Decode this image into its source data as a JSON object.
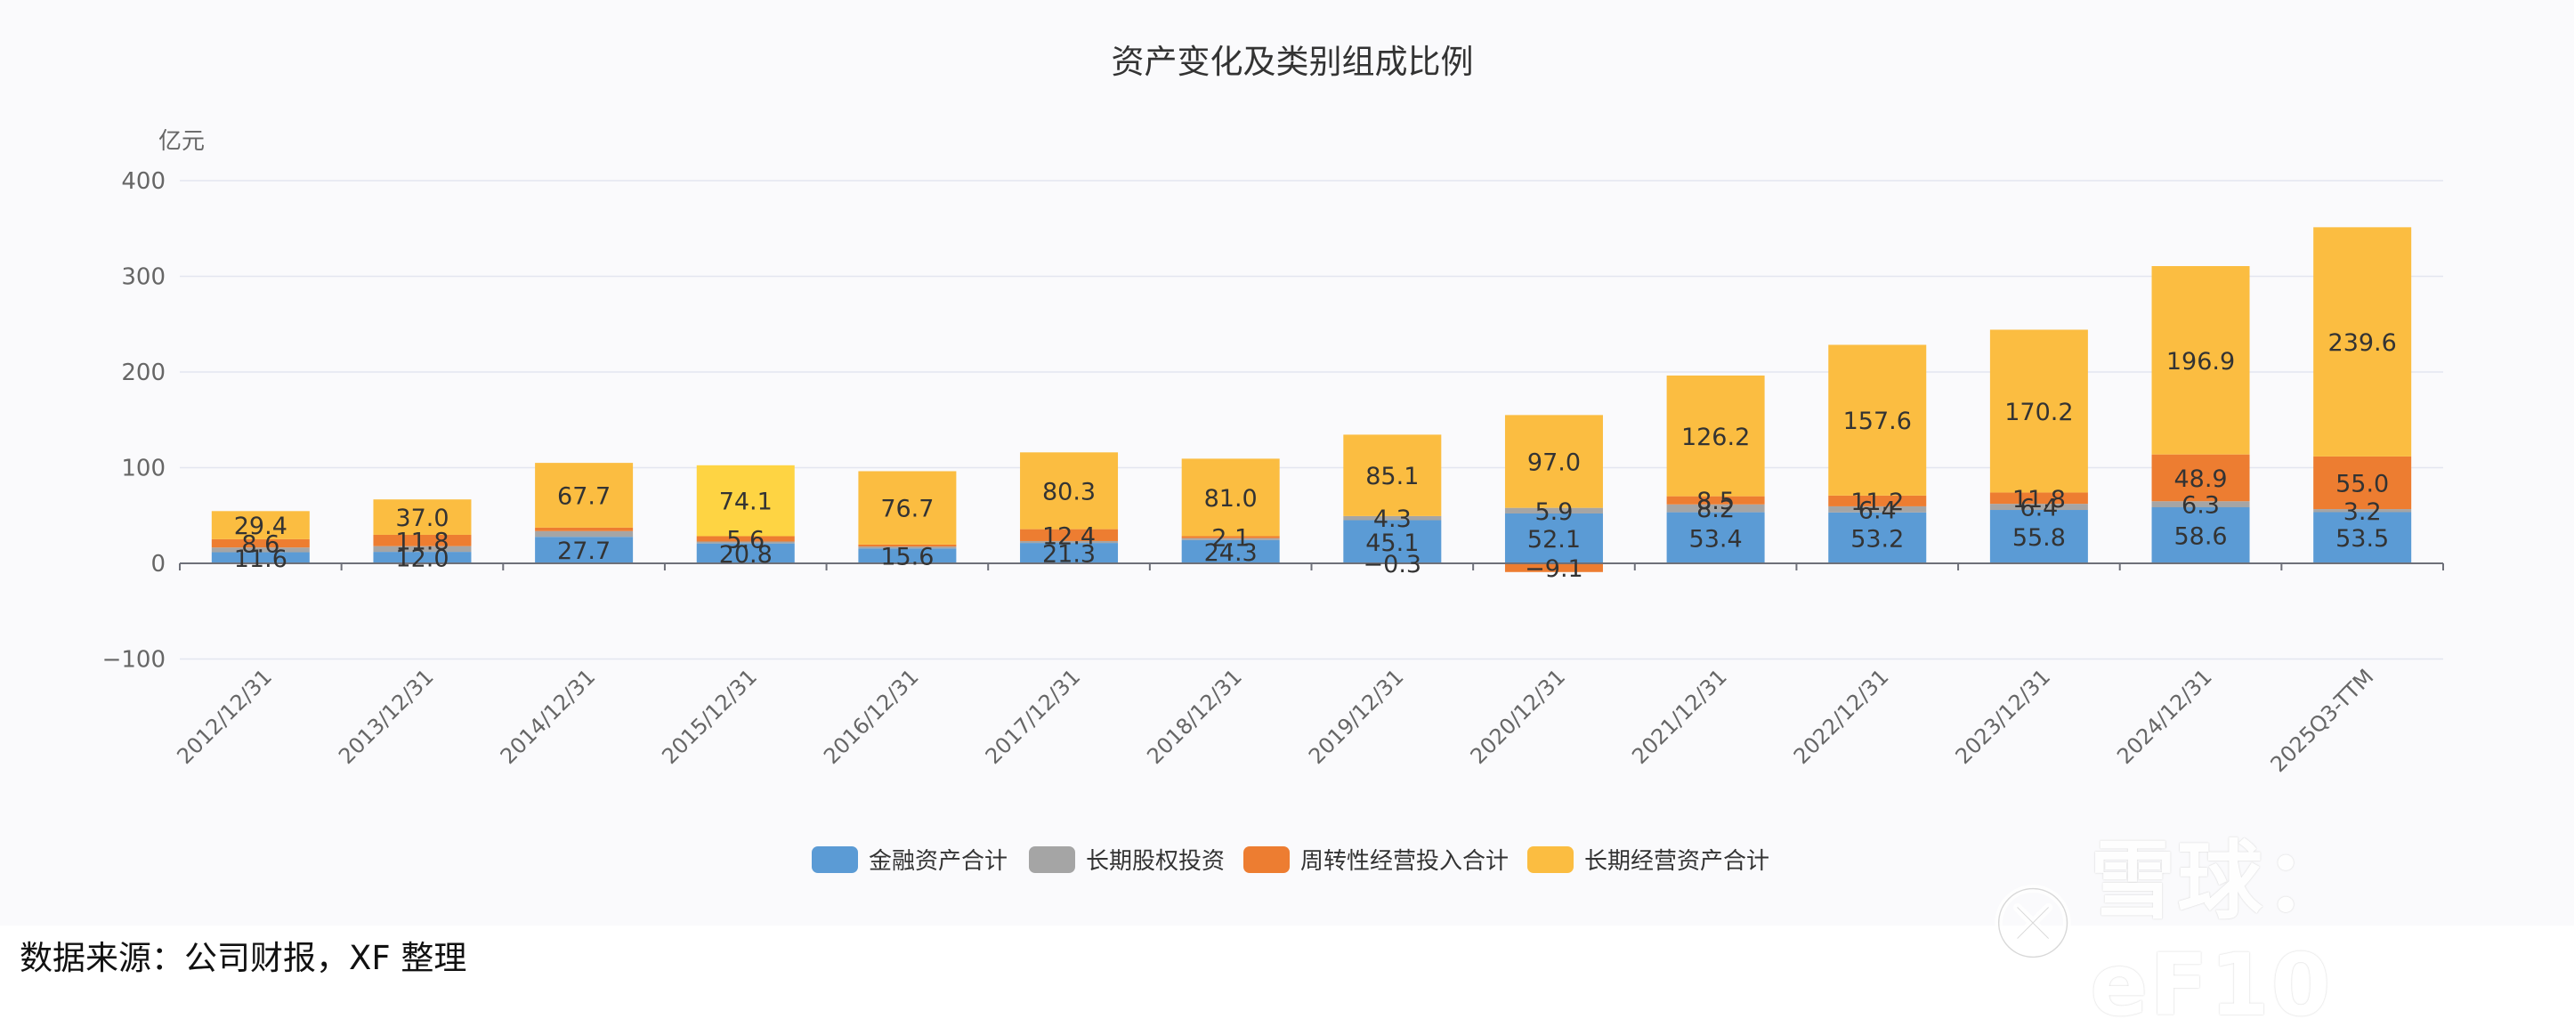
{
  "page": {
    "source_note": "数据来源：公司财报，XF 整理"
  },
  "watermark": {
    "text": "雪球：eF10",
    "icon": "snowball-logo-icon"
  },
  "chart_data": {
    "type": "bar",
    "stacked": true,
    "title": "资产变化及类别组成比例",
    "ylabel": "亿元",
    "ylim": [
      -100,
      400
    ],
    "yticks": [
      -100,
      0,
      100,
      200,
      300,
      400
    ],
    "yticklabels": [
      "−100",
      "0",
      "100",
      "200",
      "300",
      "400"
    ],
    "grid": true,
    "legend_position": "bottom",
    "categories": [
      "2012/12/31",
      "2013/12/31",
      "2014/12/31",
      "2015/12/31",
      "2016/12/31",
      "2017/12/31",
      "2018/12/31",
      "2019/12/31",
      "2020/12/31",
      "2021/12/31",
      "2022/12/31",
      "2023/12/31",
      "2024/12/31",
      "2025Q3-TTM"
    ],
    "series": [
      {
        "name": "金融资产合计",
        "color": "#5b9bd5",
        "values": [
          11.6,
          12.0,
          27.7,
          20.8,
          15.6,
          21.3,
          24.3,
          45.1,
          52.1,
          53.4,
          53.2,
          55.8,
          58.6,
          53.5
        ],
        "labels": [
          "11.6",
          "12.0",
          "27.7",
          "20.8",
          "15.6",
          "21.3",
          "24.3",
          "45.1",
          "52.1",
          "53.4",
          "53.2",
          "55.8",
          "58.6",
          "53.5"
        ]
      },
      {
        "name": "长期股权投资",
        "color": "#a5a5a5",
        "values": [
          5.0,
          6.0,
          6.0,
          2.0,
          2.0,
          2.0,
          2.0,
          4.3,
          5.9,
          8.2,
          6.4,
          6.4,
          6.3,
          3.2
        ],
        "labels": [
          "",
          "",
          "",
          "",
          "",
          "",
          "",
          "4.3",
          "5.9",
          "8.2",
          "6.4",
          "6.4",
          "6.3",
          "3.2"
        ]
      },
      {
        "name": "周转性经营投入合计",
        "color": "#ed7d31",
        "values": [
          8.6,
          11.8,
          3.6,
          5.6,
          2.0,
          12.4,
          2.1,
          -0.3,
          -9.1,
          8.5,
          11.2,
          11.8,
          48.9,
          55.0
        ],
        "labels": [
          "8.6",
          "11.8",
          "",
          "5.6",
          "",
          "12.4",
          "2.1",
          "−0.3",
          "−9.1",
          "8.5",
          "11.2",
          "11.8",
          "48.9",
          "55.0"
        ]
      },
      {
        "name": "长期经营资产合计",
        "color": "#fbbd41",
        "values": [
          29.4,
          37.0,
          67.7,
          74.1,
          76.7,
          80.3,
          81.0,
          85.1,
          97.0,
          126.2,
          157.6,
          170.2,
          196.9,
          239.6
        ],
        "labels": [
          "29.4",
          "37.0",
          "67.7",
          "74.1",
          "76.7",
          "80.3",
          "81.0",
          "85.1",
          "97.0",
          "126.2",
          "157.6",
          "170.2",
          "196.9",
          "239.6"
        ]
      }
    ],
    "highlight": {
      "category_index": 3,
      "series_index": 3,
      "color": "#fed443"
    }
  }
}
